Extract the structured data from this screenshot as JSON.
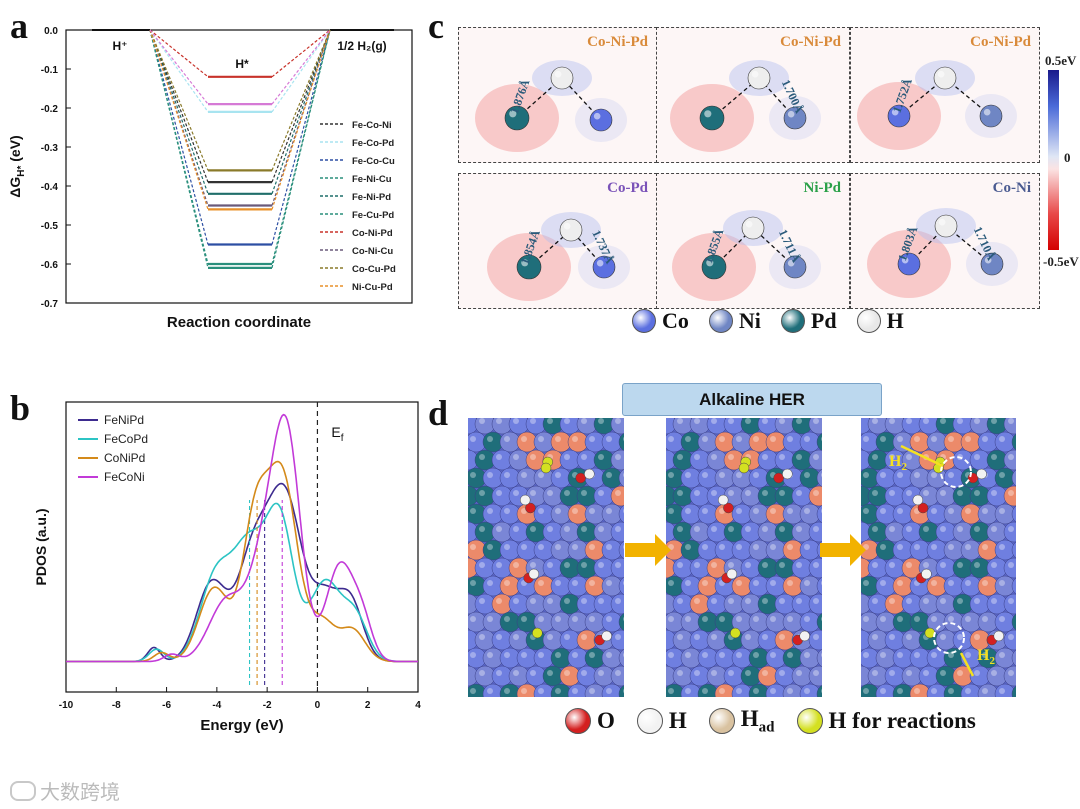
{
  "panels": {
    "a": "a",
    "b": "b",
    "c": "c",
    "d": "d"
  },
  "chart_a": {
    "type": "line",
    "ylabel_main": "ΔG",
    "ylabel_sub": "H*",
    "ylabel_unit": "(eV)",
    "xlabel": "Reaction coordinate",
    "ylim": [
      -0.7,
      0.0
    ],
    "yticks": [
      "0.0",
      "-0.1",
      "-0.2",
      "-0.3",
      "-0.4",
      "-0.5",
      "-0.6",
      "-0.7"
    ],
    "state_labels": {
      "initial": "H⁺",
      "intermediate": "H*",
      "final": "1/2 H₂(g)"
    },
    "series": [
      {
        "name": "Fe-Co-Ni",
        "value": -0.39,
        "color": "#333333"
      },
      {
        "name": "Fe-Co-Pd",
        "value": -0.21,
        "color": "#a8e4f0"
      },
      {
        "name": "Fe-Co-Cu",
        "value": -0.55,
        "color": "#2d4fa3"
      },
      {
        "name": "Fe-Ni-Cu",
        "value": -0.61,
        "color": "#2a8f7c"
      },
      {
        "name": "Fe-Ni-Pd",
        "value": -0.42,
        "color": "#1f6e6a"
      },
      {
        "name": "Fe-Cu-Pd",
        "value": -0.6,
        "color": "#2a8f7c"
      },
      {
        "name": "Co-Ni-Pd",
        "value": -0.12,
        "color": "#c8322a"
      },
      {
        "name": "Co-Ni-Cu",
        "value": -0.45,
        "color": "#6a5a7a"
      },
      {
        "name": "Co-Cu-Pd",
        "value": -0.36,
        "color": "#8a7a2a"
      },
      {
        "name": "Ni-Cu-Pd",
        "value": -0.46,
        "color": "#e8902a"
      },
      {
        "name": "",
        "value": -0.19,
        "color": "#d67ad6"
      }
    ]
  },
  "chart_b": {
    "type": "line",
    "ylabel": "PDOS (a.u.)",
    "xlabel": "Energy (eV)",
    "xlim": [
      -10,
      4
    ],
    "xticks": [
      "-10",
      "-8",
      "-6",
      "-4",
      "-2",
      "0",
      "2",
      "4"
    ],
    "fermi_label": "E",
    "fermi_sub": "f",
    "series": [
      {
        "name": "FeNiPd",
        "color": "#3d2b8f",
        "center": -2.1
      },
      {
        "name": "FeCoPd",
        "color": "#2cc4c4",
        "center": -2.7
      },
      {
        "name": "CoNiPd",
        "color": "#d48a1a",
        "center": -2.4
      },
      {
        "name": "FeCoNi",
        "color": "#c23ad8",
        "center": -1.4
      }
    ]
  },
  "panel_c": {
    "tiles": [
      {
        "title": "Co-Ni-Pd",
        "title_color": "#d98a3a",
        "d1": "1.876Å",
        "d2": ""
      },
      {
        "title": "Co-Ni-Pd",
        "title_color": "#d98a3a",
        "d1": "",
        "d2": "1.700Å"
      },
      {
        "title": "Co-Ni-Pd",
        "title_color": "#d98a3a",
        "d1": "1.752Å",
        "d2": ""
      },
      {
        "title": "Co-Pd",
        "title_color": "#7a52b8",
        "d1": "1.854Å",
        "d2": "1.737Å"
      },
      {
        "title": "Ni-Pd",
        "title_color": "#2aa048",
        "d1": "1.855Å",
        "d2": "1.711Å"
      },
      {
        "title": "Co-Ni",
        "title_color": "#4a5a90",
        "d1": "1.803Å",
        "d2": "1.710Å"
      }
    ],
    "colorbar": {
      "max": "0.5eV",
      "mid": "0",
      "min": "-0.5eV"
    },
    "legend": [
      {
        "label": "Co",
        "color": "#5b6fe0"
      },
      {
        "label": "Ni",
        "color": "#6f86c4"
      },
      {
        "label": "Pd",
        "color": "#1f6e7a"
      },
      {
        "label": "H",
        "color": "#e8e8e8"
      }
    ]
  },
  "panel_d": {
    "title": "Alkaline HER",
    "h2_label": "H",
    "h2_sub": "2",
    "legend": [
      {
        "label": "O",
        "sub": "",
        "color": "#d42020"
      },
      {
        "label": "H",
        "sub": "",
        "color": "#f2f2f2"
      },
      {
        "label": "H",
        "sub": "ad",
        "color": "#d9c2a0"
      },
      {
        "label": "H for reactions",
        "sub": "",
        "color": "#d4e021"
      }
    ]
  },
  "watermark": "大数跨境"
}
